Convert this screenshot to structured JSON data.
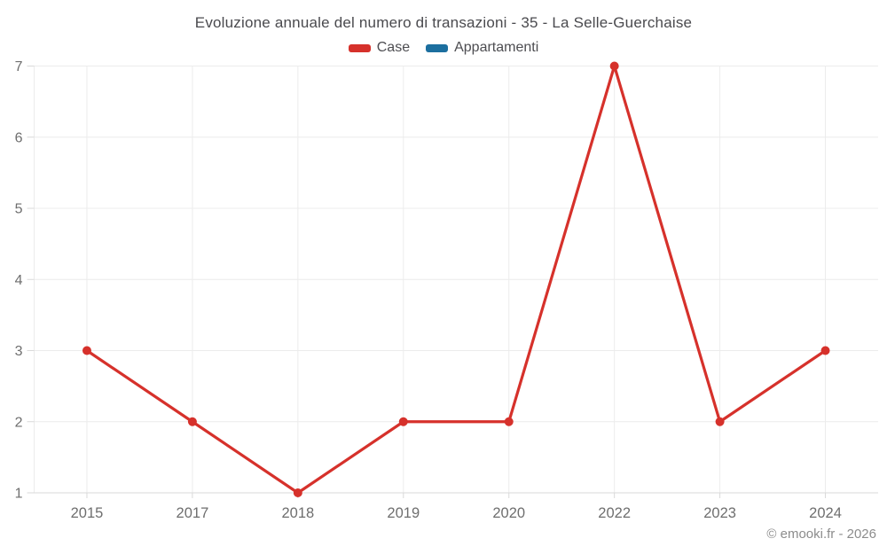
{
  "chart_data": {
    "type": "line",
    "title": "Evoluzione annuale del numero di transazioni - 35 - La Selle-Guerchaise",
    "categories": [
      "2015",
      "2017",
      "2018",
      "2019",
      "2020",
      "2022",
      "2023",
      "2024"
    ],
    "series": [
      {
        "name": "Case",
        "color": "#d6312b",
        "values": [
          3,
          2,
          1,
          2,
          2,
          7,
          2,
          3
        ]
      },
      {
        "name": "Appartamenti",
        "color": "#1c6f9f",
        "values": []
      }
    ],
    "xlabel": "",
    "ylabel": "",
    "ylim": [
      1,
      7
    ],
    "yticks": [
      1,
      2,
      3,
      4,
      5,
      6,
      7
    ],
    "grid": true,
    "legend_position": "top",
    "watermark": "© emooki.fr - 2026",
    "colors": {
      "grid_line": "#ececec",
      "axis_line": "#d9d9d9",
      "tick_mark": "#d9d9d9",
      "axis_label": "#6e6e6e",
      "title_text": "#4a4a4e",
      "legend_text": "#4d4d51",
      "watermark_text": "#8c8c8c",
      "background": "#ffffff"
    }
  }
}
